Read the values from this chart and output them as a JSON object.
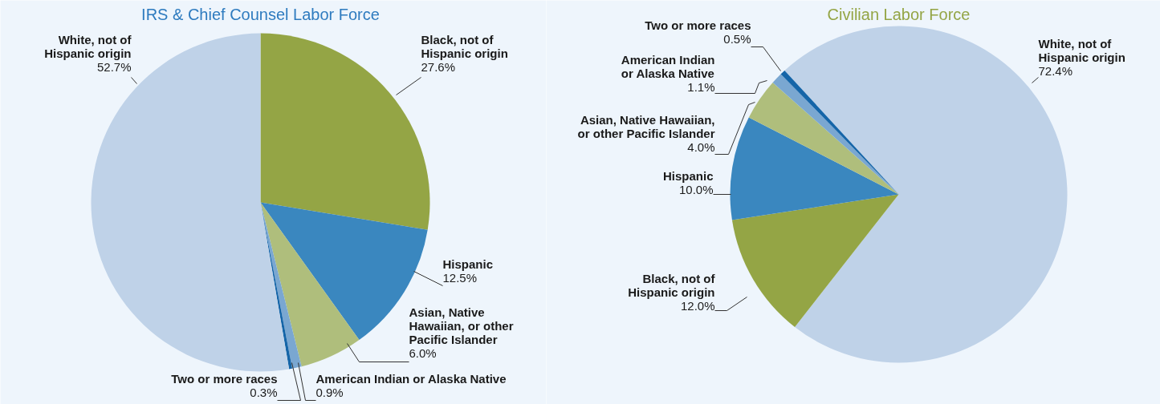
{
  "chart_data": [
    {
      "type": "pie",
      "title": "IRS & Chief Counsel Labor Force",
      "categories": [
        "Black, not of Hispanic origin",
        "Hispanic",
        "Asian, Native Hawaiian, or other Pacific Islander",
        "American Indian or Alaska Native",
        "Two or more races",
        "White, not of Hispanic origin"
      ],
      "values": [
        27.6,
        12.5,
        6.0,
        0.9,
        0.3,
        52.7
      ],
      "colors": [
        "#94a545",
        "#3a87bf",
        "#afbe7c",
        "#7aa7d1",
        "#1565a8",
        "#bfd2e8"
      ],
      "value_labels": [
        "27.6%",
        "12.5%",
        "6.0%",
        "0.9%",
        "0.3%",
        "52.7%"
      ]
    },
    {
      "type": "pie",
      "title": "Civilian Labor Force",
      "categories": [
        "White, not of Hispanic origin",
        "Black, not of Hispanic origin",
        "Hispanic",
        "Asian, Native Hawaiian, or other Pacific Islander",
        "American Indian or Alaska Native",
        "Two or more races"
      ],
      "values": [
        72.4,
        12.0,
        10.0,
        4.0,
        1.1,
        0.5
      ],
      "colors": [
        "#bfd2e8",
        "#94a545",
        "#3a87bf",
        "#afbe7c",
        "#7aa7d1",
        "#1565a8"
      ],
      "value_labels": [
        "72.4%",
        "12.0%",
        "10.0%",
        "4.0%",
        "1.1%",
        "0.5%"
      ]
    }
  ]
}
